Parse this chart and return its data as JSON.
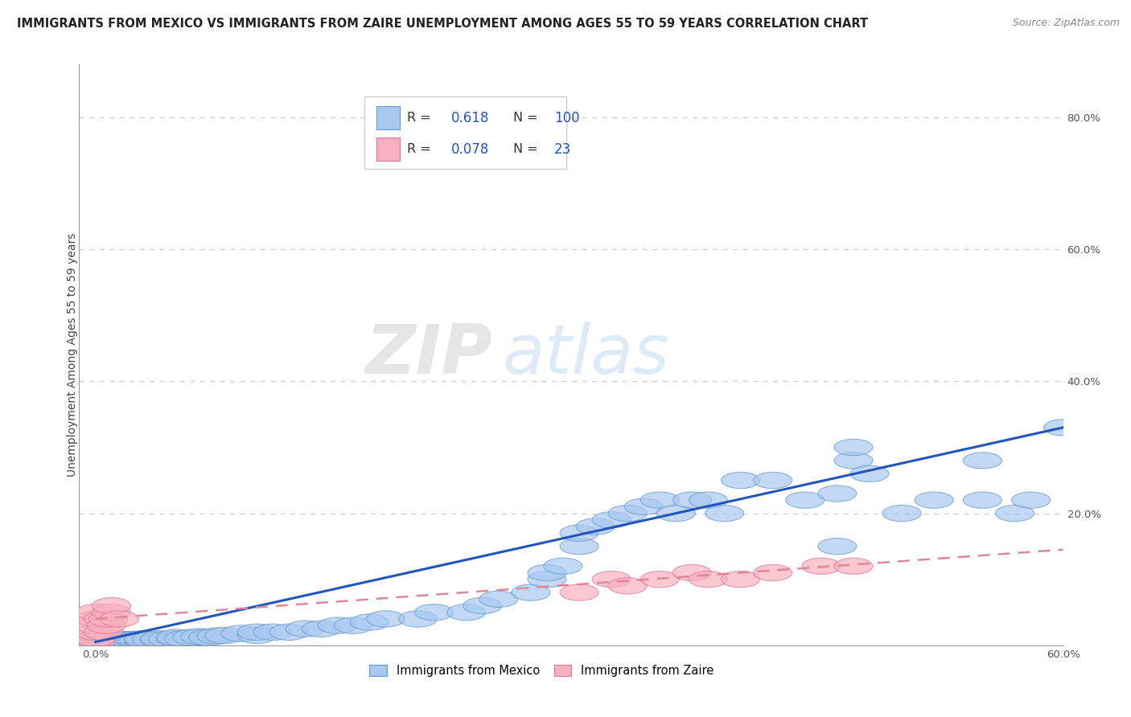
{
  "title": "IMMIGRANTS FROM MEXICO VS IMMIGRANTS FROM ZAIRE UNEMPLOYMENT AMONG AGES 55 TO 59 YEARS CORRELATION CHART",
  "source": "Source: ZipAtlas.com",
  "ylabel": "Unemployment Among Ages 55 to 59 years",
  "legend_label_1": "Immigrants from Mexico",
  "legend_label_2": "Immigrants from Zaire",
  "R1": 0.618,
  "N1": 100,
  "R2": 0.078,
  "N2": 23,
  "color_mexico": "#a8c8f0",
  "color_zaire": "#f8b0c0",
  "color_mexico_edge": "#6699cc",
  "color_zaire_edge": "#dd7799",
  "color_trendline_mexico": "#2255bb",
  "color_trendline_zaire": "#dd8899",
  "watermark_zip": "ZIP",
  "watermark_atlas": "atlas",
  "xlim": [
    0.0,
    0.6
  ],
  "ylim": [
    0.0,
    0.88
  ],
  "background_color": "#ffffff",
  "grid_color": "#cccccc",
  "title_fontsize": 10.5,
  "info_box_R_color": "#2255bb",
  "info_box_N_color": "#2255bb",
  "mexico_x": [
    0.0,
    0.0,
    0.0,
    0.0,
    0.0,
    0.0,
    0.0,
    0.0,
    0.002,
    0.003,
    0.004,
    0.005,
    0.005,
    0.006,
    0.006,
    0.007,
    0.007,
    0.008,
    0.008,
    0.009,
    0.01,
    0.01,
    0.01,
    0.01,
    0.012,
    0.013,
    0.014,
    0.015,
    0.015,
    0.016,
    0.018,
    0.02,
    0.02,
    0.02,
    0.022,
    0.025,
    0.025,
    0.027,
    0.03,
    0.03,
    0.03,
    0.03,
    0.035,
    0.04,
    0.04,
    0.045,
    0.05,
    0.05,
    0.055,
    0.06,
    0.065,
    0.07,
    0.075,
    0.08,
    0.09,
    0.1,
    0.1,
    0.11,
    0.12,
    0.13,
    0.14,
    0.15,
    0.16,
    0.17,
    0.18,
    0.2,
    0.21,
    0.23,
    0.24,
    0.25,
    0.27,
    0.28,
    0.28,
    0.29,
    0.3,
    0.3,
    0.31,
    0.32,
    0.33,
    0.34,
    0.35,
    0.36,
    0.37,
    0.38,
    0.39,
    0.4,
    0.42,
    0.44,
    0.46,
    0.46,
    0.47,
    0.47,
    0.48,
    0.5,
    0.52,
    0.55,
    0.55,
    0.57,
    0.58,
    0.6
  ],
  "mexico_y": [
    0.0,
    0.0,
    0.005,
    0.005,
    0.007,
    0.008,
    0.01,
    0.01,
    0.005,
    0.005,
    0.005,
    0.005,
    0.008,
    0.006,
    0.007,
    0.005,
    0.008,
    0.006,
    0.007,
    0.005,
    0.005,
    0.006,
    0.007,
    0.008,
    0.006,
    0.007,
    0.008,
    0.006,
    0.008,
    0.007,
    0.008,
    0.005,
    0.007,
    0.009,
    0.008,
    0.007,
    0.009,
    0.008,
    0.005,
    0.007,
    0.008,
    0.01,
    0.009,
    0.008,
    0.01,
    0.009,
    0.01,
    0.012,
    0.01,
    0.012,
    0.013,
    0.012,
    0.014,
    0.015,
    0.018,
    0.015,
    0.02,
    0.02,
    0.02,
    0.025,
    0.025,
    0.03,
    0.03,
    0.035,
    0.04,
    0.04,
    0.05,
    0.05,
    0.06,
    0.07,
    0.08,
    0.1,
    0.11,
    0.12,
    0.15,
    0.17,
    0.18,
    0.19,
    0.2,
    0.21,
    0.22,
    0.2,
    0.22,
    0.22,
    0.2,
    0.25,
    0.25,
    0.22,
    0.23,
    0.15,
    0.28,
    0.3,
    0.26,
    0.2,
    0.22,
    0.22,
    0.28,
    0.2,
    0.22,
    0.33
  ],
  "zaire_x": [
    0.0,
    0.0,
    0.0,
    0.0,
    0.0,
    0.0,
    0.005,
    0.005,
    0.007,
    0.008,
    0.01,
    0.01,
    0.015,
    0.3,
    0.32,
    0.33,
    0.35,
    0.37,
    0.38,
    0.4,
    0.42,
    0.45,
    0.47
  ],
  "zaire_y": [
    0.005,
    0.01,
    0.02,
    0.03,
    0.04,
    0.05,
    0.02,
    0.04,
    0.03,
    0.04,
    0.05,
    0.06,
    0.04,
    0.08,
    0.1,
    0.09,
    0.1,
    0.11,
    0.1,
    0.1,
    0.11,
    0.12,
    0.12
  ],
  "trendline_mexico_x0": 0.0,
  "trendline_mexico_y0": 0.005,
  "trendline_mexico_x1": 0.6,
  "trendline_mexico_y1": 0.33,
  "trendline_zaire_x0": 0.0,
  "trendline_zaire_y0": 0.04,
  "trendline_zaire_x1": 0.6,
  "trendline_zaire_y1": 0.145
}
